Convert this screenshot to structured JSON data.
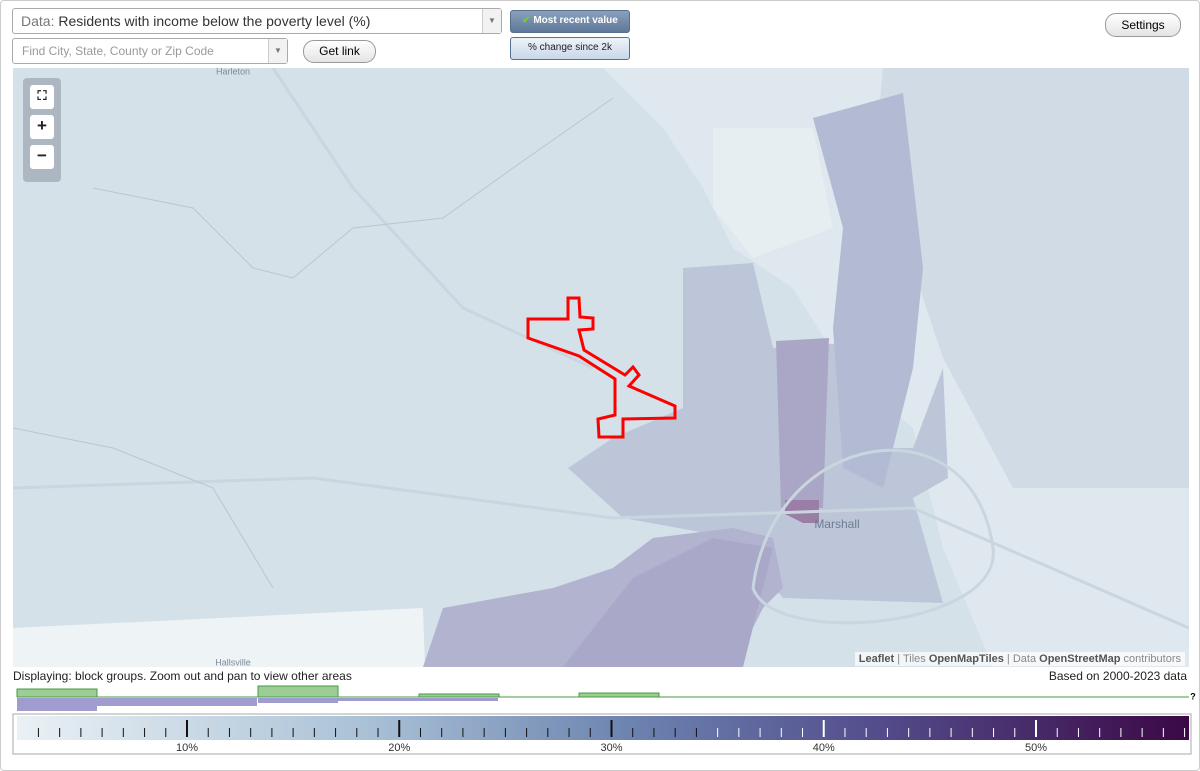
{
  "header": {
    "data_label": "Data:",
    "data_value": "Residents with income below the poverty level (%)",
    "search_placeholder": "Find City, State, County or Zip Code",
    "get_link": "Get link",
    "most_recent": "Most recent value",
    "pct_change": "% change since 2k",
    "settings": "Settings"
  },
  "map": {
    "zoom_in": "+",
    "zoom_out": "−",
    "places": {
      "top": "Harleton",
      "city": "Marshall",
      "bottom": "Hallsville"
    },
    "attribution": {
      "leaflet": "Leaflet",
      "sep1": "|",
      "tiles": "Tiles",
      "tiles_src": "OpenMapTiles",
      "sep2": "|",
      "data": "Data",
      "data_src": "OpenStreetMap",
      "contributors": "contributors"
    }
  },
  "footer": {
    "displaying": "Displaying: block groups. Zoom out and pan to view other areas",
    "based_on": "Based on 2000-2023 data",
    "unknown": "?",
    "legend_ticks": [
      "10%",
      "20%",
      "30%",
      "40%",
      "50%"
    ]
  }
}
